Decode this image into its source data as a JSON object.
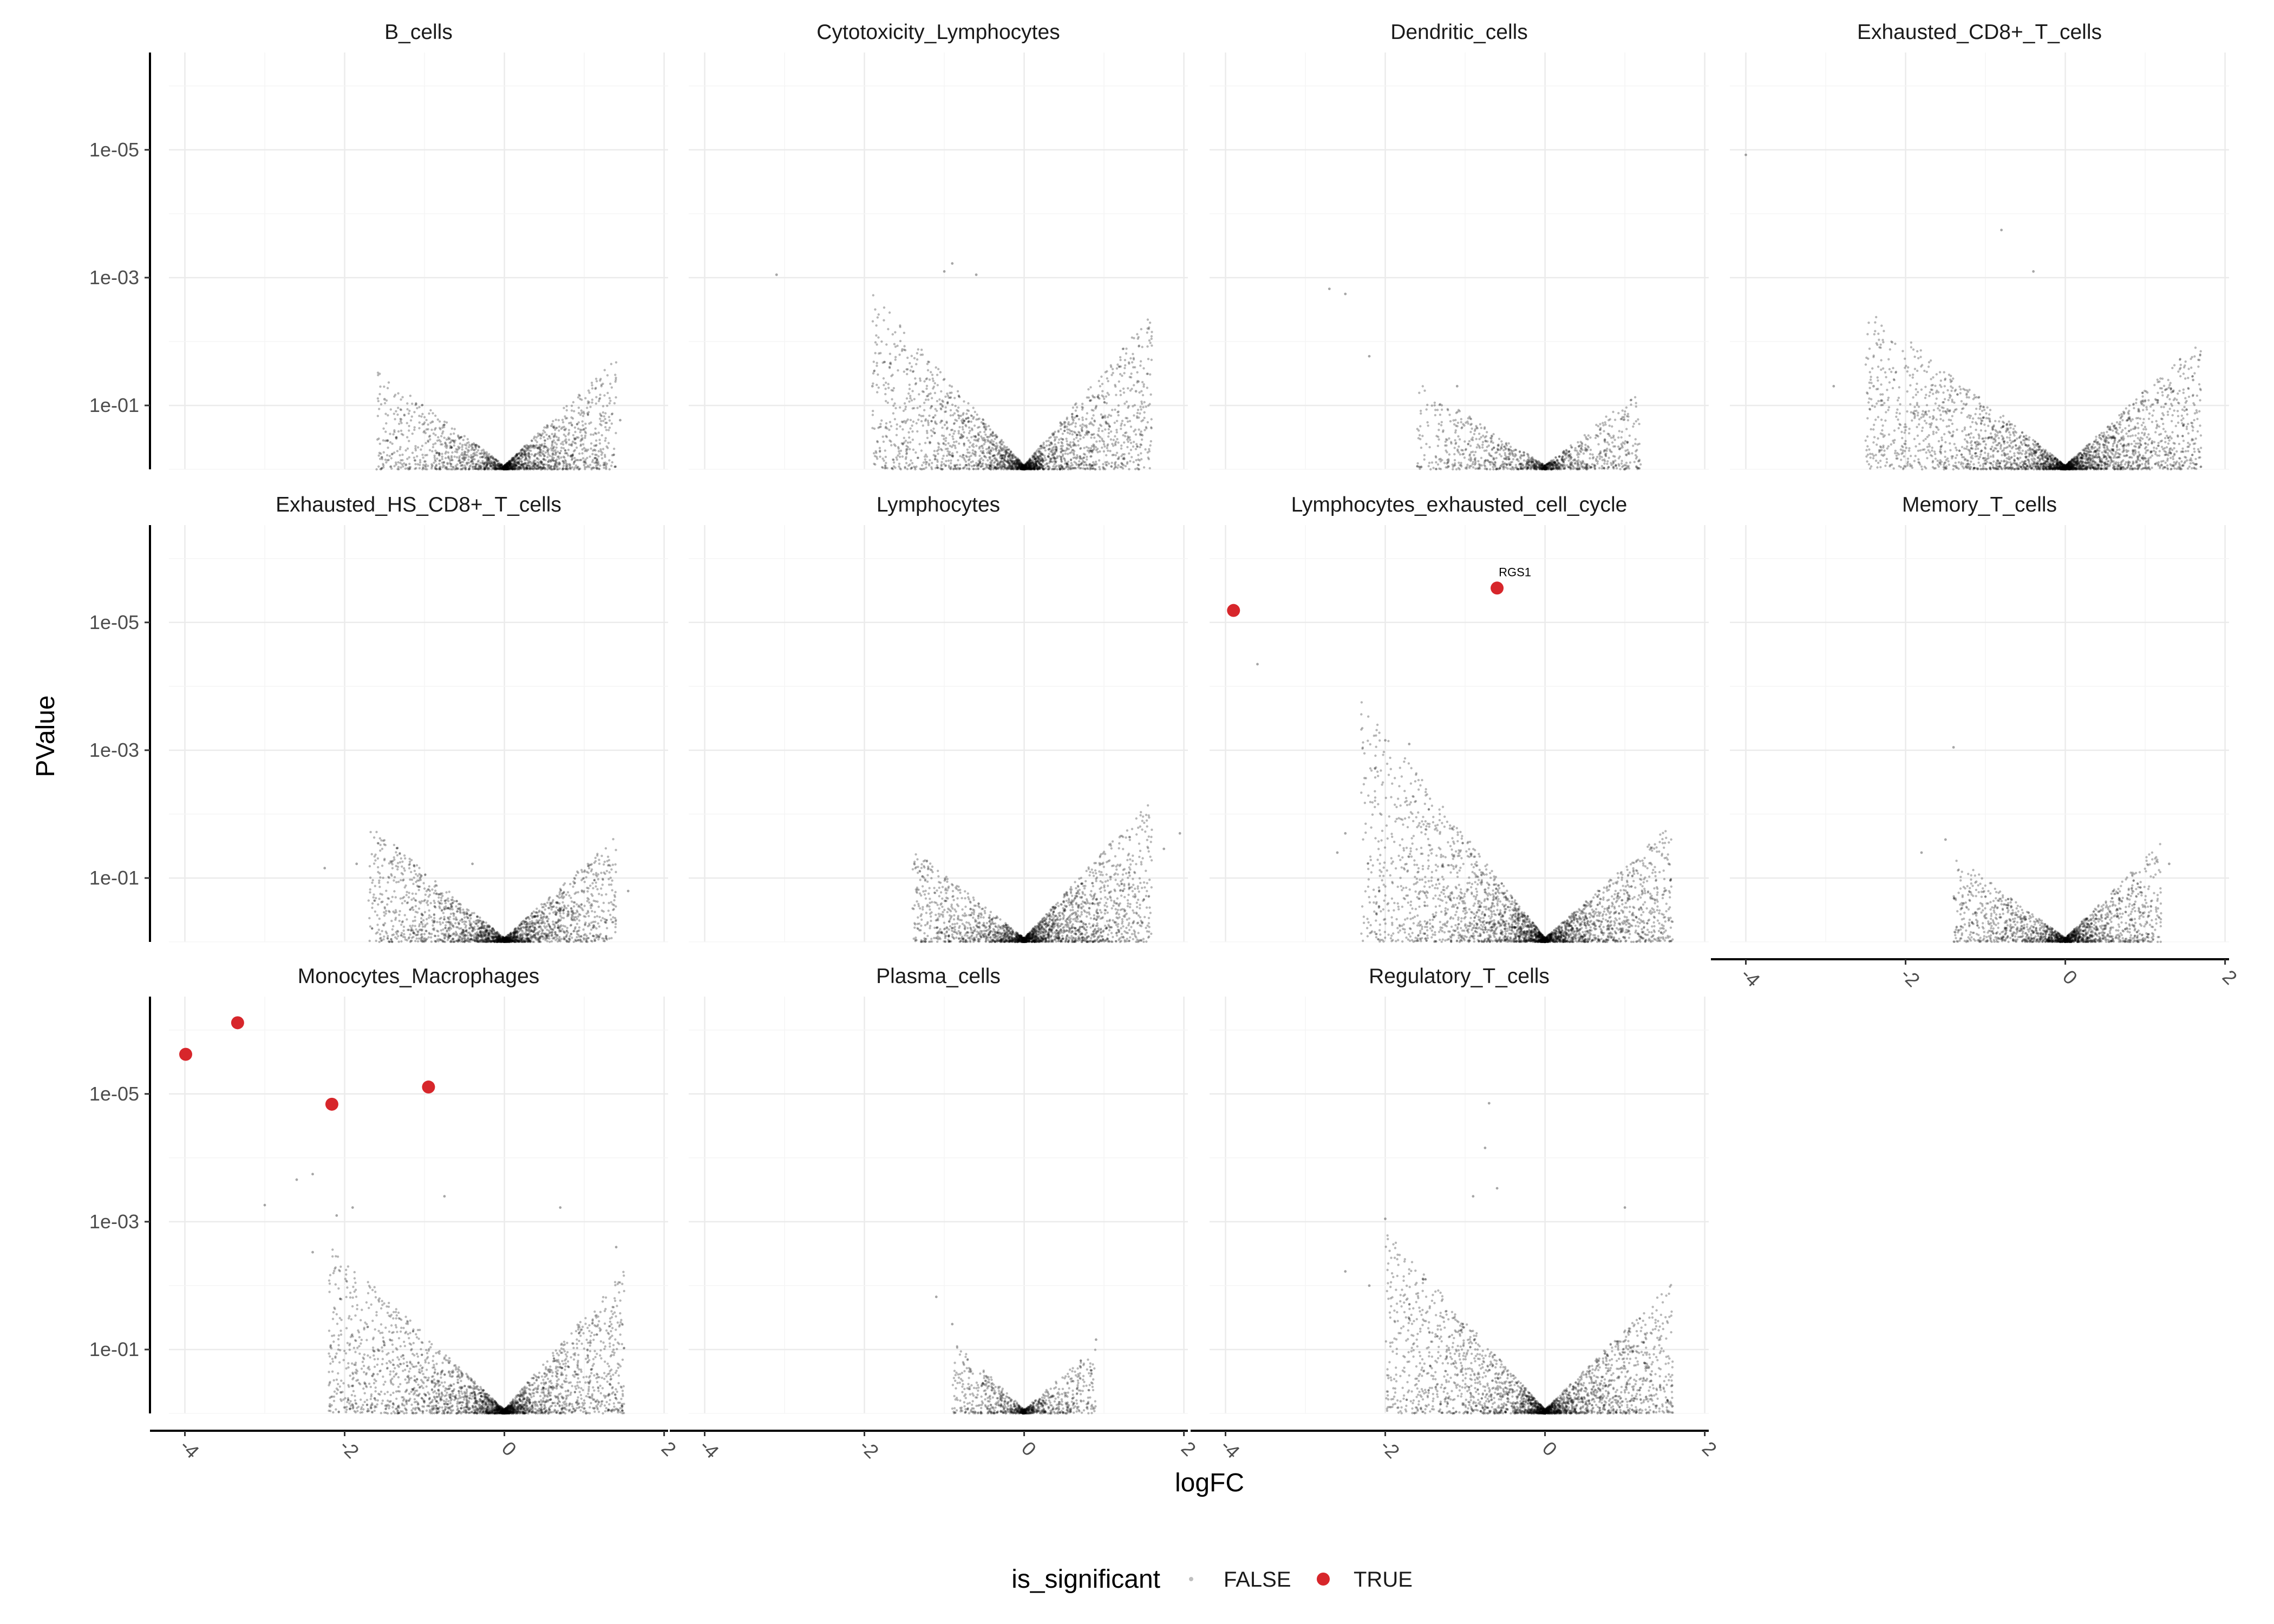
{
  "chart_data": {
    "type": "scatter",
    "subtype": "faceted volcano plot",
    "xlabel": "logFC",
    "ylabel": "PValue",
    "x_scale": "linear",
    "y_scale": "log (reversed)",
    "xlim": [
      -4.2,
      2.05
    ],
    "x_ticks": [
      -4,
      -2,
      0,
      2
    ],
    "x_tick_labels": [
      "-4",
      "-2",
      "0",
      "2"
    ],
    "y_ticks": [
      1e-05,
      0.001,
      0.1
    ],
    "y_tick_labels": [
      "1e-05",
      "1e-03",
      "1e-01"
    ],
    "ylim": [
      1,
      3e-07
    ],
    "grid": true,
    "legend": {
      "title": "is_significant",
      "placement": "bottom",
      "entries": [
        {
          "label": "FALSE",
          "color": "#000000"
        },
        {
          "label": "TRUE",
          "color": "#d7262b"
        }
      ]
    },
    "colors": {
      "not_significant": "#000000",
      "significant": "#d7262b"
    },
    "facets": [
      {
        "name": "B_cells",
        "clouds": [
          {
            "side": "left",
            "x_min": -1.6,
            "max_logp": 1.5,
            "density": 0.5
          },
          {
            "side": "right",
            "x_max": 1.4,
            "max_logp": 1.7,
            "density": 0.7
          }
        ],
        "outliers": [
          {
            "x": -1.5,
            "p": 0.08
          },
          {
            "x": -0.9,
            "p": 0.18
          },
          {
            "x": 1.45,
            "p": 0.17
          }
        ],
        "significant": []
      },
      {
        "name": "Cytotoxicity_Lymphocytes",
        "clouds": [
          {
            "side": "left",
            "x_min": -1.9,
            "max_logp": 2.7,
            "density": 0.8
          },
          {
            "side": "right",
            "x_max": 1.6,
            "max_logp": 2.4,
            "density": 0.75
          }
        ],
        "outliers": [
          {
            "x": -3.1,
            "p": 0.0009
          },
          {
            "x": -1.0,
            "p": 0.0008
          },
          {
            "x": -0.6,
            "p": 0.0009
          },
          {
            "x": -0.9,
            "p": 0.0006
          },
          {
            "x": -1.9,
            "p": 0.05
          },
          {
            "x": 1.4,
            "p": 0.06
          }
        ],
        "significant": []
      },
      {
        "name": "Dendritic_cells",
        "clouds": [
          {
            "side": "left",
            "x_min": -1.6,
            "max_logp": 1.3,
            "density": 0.4
          },
          {
            "side": "right",
            "x_max": 1.2,
            "max_logp": 1.2,
            "density": 0.35
          }
        ],
        "outliers": [
          {
            "x": -2.7,
            "p": 0.0015
          },
          {
            "x": -2.5,
            "p": 0.0018
          },
          {
            "x": -2.2,
            "p": 0.017
          },
          {
            "x": -1.1,
            "p": 0.05
          }
        ],
        "significant": []
      },
      {
        "name": "Exhausted_CD8+_T_cells",
        "clouds": [
          {
            "side": "left",
            "x_min": -2.5,
            "max_logp": 2.5,
            "density": 1.0
          },
          {
            "side": "right",
            "x_max": 1.7,
            "max_logp": 2.0,
            "density": 0.9
          }
        ],
        "outliers": [
          {
            "x": -4.0,
            "p": 1.2e-05
          },
          {
            "x": -0.8,
            "p": 0.00018
          },
          {
            "x": -0.4,
            "p": 0.0008
          },
          {
            "x": -2.9,
            "p": 0.05
          },
          {
            "x": -2.4,
            "p": 0.05
          },
          {
            "x": 1.6,
            "p": 0.04
          }
        ],
        "significant": []
      },
      {
        "name": "Exhausted_HS_CD8+_T_cells",
        "clouds": [
          {
            "side": "left",
            "x_min": -1.7,
            "max_logp": 1.8,
            "density": 0.75
          },
          {
            "side": "right",
            "x_max": 1.4,
            "max_logp": 1.6,
            "density": 0.7
          }
        ],
        "outliers": [
          {
            "x": -2.25,
            "p": 0.07
          },
          {
            "x": -1.85,
            "p": 0.06
          },
          {
            "x": -0.4,
            "p": 0.06
          },
          {
            "x": 1.55,
            "p": 0.16
          }
        ],
        "significant": []
      },
      {
        "name": "Lymphocytes",
        "clouds": [
          {
            "side": "left",
            "x_min": -1.4,
            "max_logp": 1.4,
            "density": 0.6
          },
          {
            "side": "right",
            "x_max": 1.6,
            "max_logp": 2.2,
            "density": 0.9
          }
        ],
        "outliers": [
          {
            "x": 1.95,
            "p": 0.02
          },
          {
            "x": 1.75,
            "p": 0.035
          }
        ],
        "significant": []
      },
      {
        "name": "Lymphocytes_exhausted_cell_cycle",
        "clouds": [
          {
            "side": "left",
            "x_min": -2.3,
            "max_logp": 3.7,
            "density": 1.15
          },
          {
            "side": "right",
            "x_max": 1.6,
            "max_logp": 1.8,
            "density": 0.8
          }
        ],
        "outliers": [
          {
            "x": -3.6,
            "p": 4.5e-05
          },
          {
            "x": -2.0,
            "p": 0.0007
          },
          {
            "x": -2.5,
            "p": 0.02
          },
          {
            "x": -2.6,
            "p": 0.04
          },
          {
            "x": -1.7,
            "p": 0.0008
          },
          {
            "x": 1.55,
            "p": 0.06
          }
        ],
        "significant": [
          {
            "x": -3.9,
            "p": 6.5e-06
          },
          {
            "x": -0.6,
            "p": 2.9e-06,
            "label": "RGS1"
          }
        ]
      },
      {
        "name": "Memory_T_cells",
        "clouds": [
          {
            "side": "left",
            "x_min": -1.4,
            "max_logp": 1.3,
            "density": 0.55
          },
          {
            "side": "right",
            "x_max": 1.2,
            "max_logp": 1.5,
            "density": 0.6
          }
        ],
        "outliers": [
          {
            "x": -1.4,
            "p": 0.0009
          },
          {
            "x": -1.5,
            "p": 0.025
          },
          {
            "x": -1.8,
            "p": 0.04
          },
          {
            "x": 1.3,
            "p": 0.06
          }
        ],
        "significant": []
      },
      {
        "name": "Monocytes_Macrophages",
        "clouds": [
          {
            "side": "left",
            "x_min": -2.2,
            "max_logp": 2.6,
            "density": 1.0
          },
          {
            "side": "right",
            "x_max": 1.5,
            "max_logp": 2.2,
            "density": 0.8
          }
        ],
        "outliers": [
          {
            "x": -2.6,
            "p": 0.00022
          },
          {
            "x": -2.4,
            "p": 0.00018
          },
          {
            "x": -3.0,
            "p": 0.00055
          },
          {
            "x": -1.9,
            "p": 0.0006
          },
          {
            "x": -0.75,
            "p": 0.0004
          },
          {
            "x": 0.7,
            "p": 0.0006
          },
          {
            "x": -2.4,
            "p": 0.003
          },
          {
            "x": -2.1,
            "p": 0.0008
          },
          {
            "x": 1.4,
            "p": 0.0025
          }
        ],
        "significant": [
          {
            "x": -3.99,
            "p": 2.4e-06
          },
          {
            "x": -3.34,
            "p": 7.7e-07
          },
          {
            "x": -2.16,
            "p": 1.45e-05
          },
          {
            "x": -0.95,
            "p": 7.8e-06
          }
        ]
      },
      {
        "name": "Plasma_cells",
        "clouds": [
          {
            "side": "left",
            "x_min": -0.9,
            "max_logp": 1.1,
            "density": 0.3
          },
          {
            "side": "right",
            "x_max": 0.9,
            "max_logp": 1.0,
            "density": 0.3
          }
        ],
        "outliers": [
          {
            "x": -1.1,
            "p": 0.015
          },
          {
            "x": -0.9,
            "p": 0.04
          },
          {
            "x": 0.9,
            "p": 0.07
          }
        ],
        "significant": []
      },
      {
        "name": "Regulatory_T_cells",
        "clouds": [
          {
            "side": "left",
            "x_min": -2.0,
            "max_logp": 2.8,
            "density": 0.9
          },
          {
            "side": "right",
            "x_max": 1.6,
            "max_logp": 2.0,
            "density": 0.8
          }
        ],
        "outliers": [
          {
            "x": -0.7,
            "p": 1.4e-05
          },
          {
            "x": -0.75,
            "p": 7e-05
          },
          {
            "x": -0.6,
            "p": 0.0003
          },
          {
            "x": -2.5,
            "p": 0.006
          },
          {
            "x": -2.2,
            "p": 0.01
          },
          {
            "x": 1.0,
            "p": 0.0006
          },
          {
            "x": -0.9,
            "p": 0.0004
          },
          {
            "x": -2.0,
            "p": 0.0009
          }
        ],
        "significant": []
      }
    ]
  }
}
